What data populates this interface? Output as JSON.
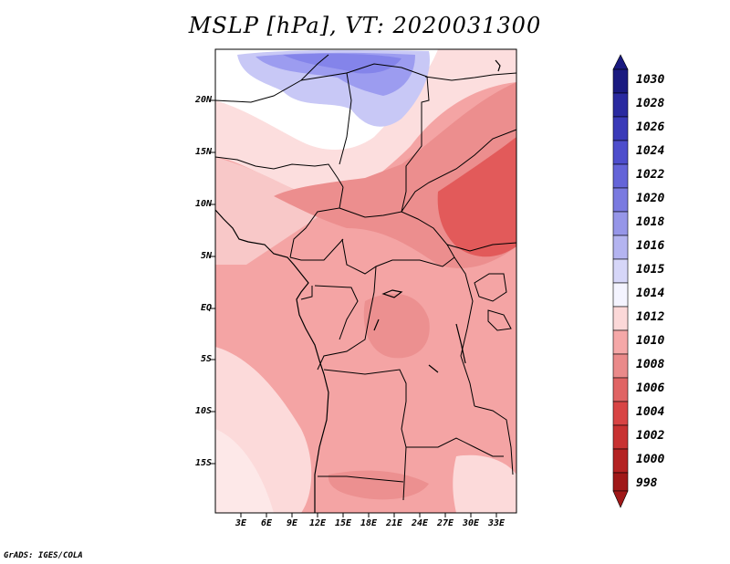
{
  "title": "MSLP [hPa], VT: 2020031300",
  "credit": "GrADS: IGES/COLA",
  "lat_ticks": [
    "20N",
    "15N",
    "10N",
    "5N",
    "EQ",
    "5S",
    "10S",
    "15S"
  ],
  "lon_ticks": [
    "3E",
    "6E",
    "9E",
    "12E",
    "15E",
    "18E",
    "21E",
    "24E",
    "27E",
    "30E",
    "33E"
  ],
  "colorbar": {
    "labels": [
      "1030",
      "1028",
      "1026",
      "1024",
      "1022",
      "1020",
      "1018",
      "1016",
      "1015",
      "1014",
      "1012",
      "1010",
      "1008",
      "1006",
      "1004",
      "1002",
      "1000",
      "998"
    ],
    "colors": [
      "#1a1a80",
      "#2a2aa0",
      "#3a3ab8",
      "#4e4ecc",
      "#6464d8",
      "#7a7ae0",
      "#9696e8",
      "#b4b4f0",
      "#d6d6f8",
      "#f4f4ff",
      "#fbd8d8",
      "#f5a8a8",
      "#ea8a8a",
      "#e06464",
      "#d84444",
      "#c83232",
      "#b42222",
      "#a01818"
    ]
  },
  "map": {
    "region": "Central Africa",
    "lat_range": [
      -20,
      24
    ],
    "lon_range": [
      0,
      35
    ],
    "field_colors": {
      "high_blue": "#8c8cf0",
      "light_blue": "#c4c4f8",
      "white": "#ffffff",
      "pale_pink": "#fce0e0",
      "light_pink": "#f8c6c6",
      "pink": "#f4a4a4",
      "medium_pink": "#ec9090",
      "red": "#e45858"
    }
  }
}
